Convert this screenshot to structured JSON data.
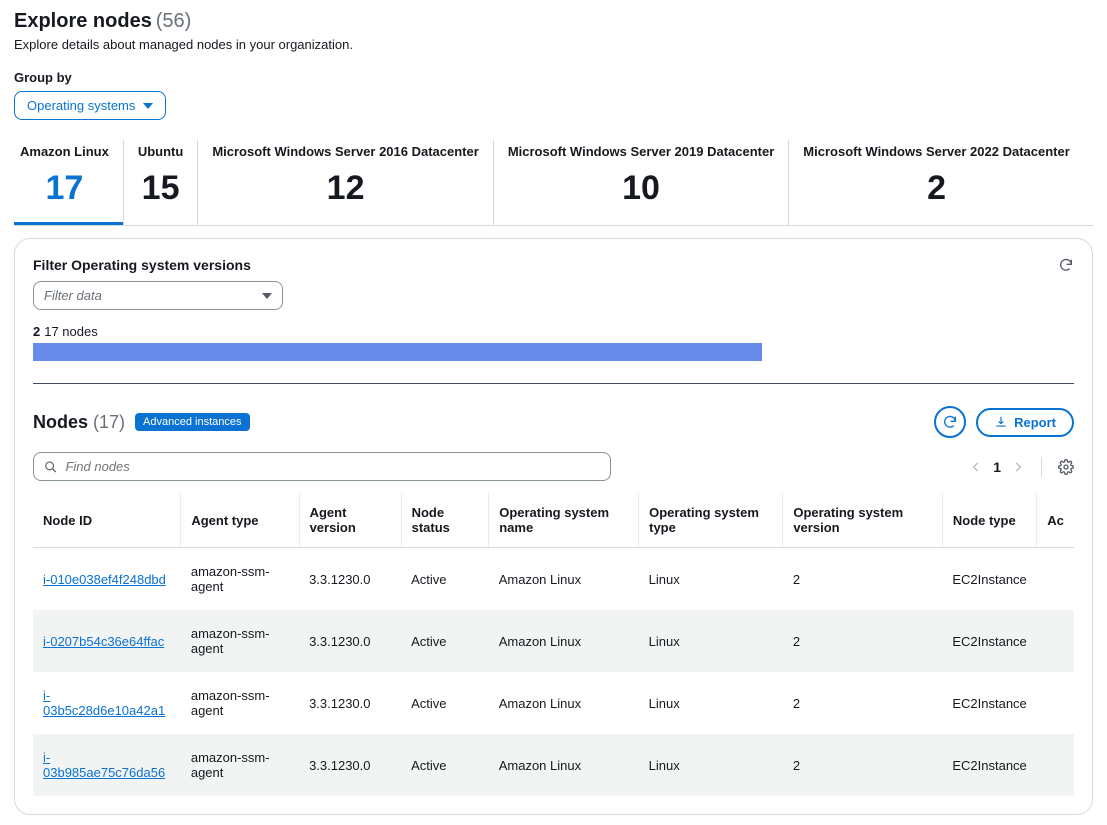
{
  "header": {
    "title": "Explore nodes",
    "count": "(56)",
    "subtitle": "Explore details about managed nodes in your organization."
  },
  "groupBy": {
    "label": "Group by",
    "selected": "Operating systems"
  },
  "tabs": [
    {
      "label": "Amazon Linux",
      "count": "17",
      "active": true
    },
    {
      "label": "Ubuntu",
      "count": "15",
      "active": false
    },
    {
      "label": "Microsoft Windows Server 2016 Datacenter",
      "count": "12",
      "active": false
    },
    {
      "label": "Microsoft Windows Server 2019 Datacenter",
      "count": "10",
      "active": false
    },
    {
      "label": "Microsoft Windows Server 2022 Datacenter",
      "count": "2",
      "active": false
    }
  ],
  "filter": {
    "title": "Filter Operating system versions",
    "placeholder": "Filter data",
    "bar_label_prefix": "2",
    "bar_label_text": "17 nodes",
    "bar_fill_pct": 70,
    "bar_color": "#688ae8"
  },
  "nodes": {
    "title": "Nodes",
    "count": "(17)",
    "badge": "Advanced instances",
    "report_label": "Report",
    "search_placeholder": "Find nodes",
    "page": "1",
    "columns": [
      "Node ID",
      "Agent type",
      "Agent version",
      "Node status",
      "Operating system name",
      "Operating system type",
      "Operating system version",
      "Node type",
      "Ac"
    ],
    "rows": [
      {
        "id": "i-010e038ef4f248dbd",
        "agent_type": "amazon-ssm-agent",
        "agent_version": "3.3.1230.0",
        "status": "Active",
        "os_name": "Amazon Linux",
        "os_type": "Linux",
        "os_version": "2",
        "node_type": "EC2Instance"
      },
      {
        "id": "i-0207b54c36e64ffac",
        "agent_type": "amazon-ssm-agent",
        "agent_version": "3.3.1230.0",
        "status": "Active",
        "os_name": "Amazon Linux",
        "os_type": "Linux",
        "os_version": "2",
        "node_type": "EC2Instance"
      },
      {
        "id": "i-03b5c28d6e10a42a1",
        "agent_type": "amazon-ssm-agent",
        "agent_version": "3.3.1230.0",
        "status": "Active",
        "os_name": "Amazon Linux",
        "os_type": "Linux",
        "os_version": "2",
        "node_type": "EC2Instance"
      },
      {
        "id": "i-03b985ae75c76da56",
        "agent_type": "amazon-ssm-agent",
        "agent_version": "3.3.1230.0",
        "status": "Active",
        "os_name": "Amazon Linux",
        "os_type": "Linux",
        "os_version": "2",
        "node_type": "EC2Instance"
      }
    ]
  },
  "colors": {
    "accent": "#0972d3",
    "border": "#d5dbdb",
    "text_muted": "#687078"
  }
}
